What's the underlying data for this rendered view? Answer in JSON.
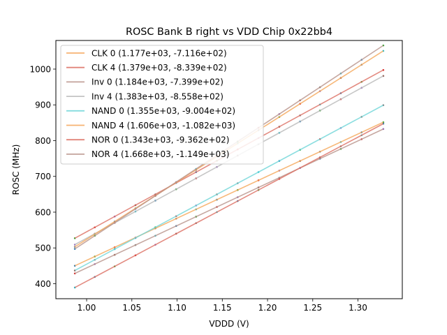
{
  "chart_data": {
    "type": "line",
    "title": "ROSC Bank B right vs VDD Chip 0x22bb4",
    "xlabel": "VDDD (V)",
    "ylabel": "ROSC (MHz)",
    "xlim": [
      0.966,
      1.349
    ],
    "ylim": [
      358,
      1080
    ],
    "xticks": [
      "1.00",
      "1.05",
      "1.10",
      "1.15",
      "1.20",
      "1.25",
      "1.30"
    ],
    "yticks": [
      "400",
      "500",
      "600",
      "700",
      "800",
      "900",
      "1000"
    ],
    "grid": false,
    "legend_position": "top-left",
    "x_points": [
      0.987,
      1.009,
      1.031,
      1.054,
      1.076,
      1.099,
      1.121,
      1.144,
      1.167,
      1.19,
      1.213,
      1.236,
      1.258,
      1.281,
      1.304,
      1.328
    ],
    "series": [
      {
        "name": "CLK 0 (1.177e+03, -7.116e+02)",
        "slope": 1177,
        "intercept": -711.6,
        "color": "#f5a658"
      },
      {
        "name": "CLK 4 (1.379e+03, -8.339e+02)",
        "slope": 1379,
        "intercept": -833.9,
        "color": "#dc6e62"
      },
      {
        "name": "Inv 0 (1.184e+03, -7.399e+02)",
        "slope": 1184,
        "intercept": -739.9,
        "color": "#b8928a"
      },
      {
        "name": "Inv 4 (1.383e+03, -8.558e+02)",
        "slope": 1383,
        "intercept": -855.8,
        "color": "#b8b8b8"
      },
      {
        "name": "NAND 0 (1.355e+03, -9.004e+02)",
        "slope": 1355,
        "intercept": -900.4,
        "color": "#6fd6d8"
      },
      {
        "name": "NAND 4 (1.606e+03, -1.082e+03)",
        "slope": 1606,
        "intercept": -1082,
        "color": "#f5a658"
      },
      {
        "name": "NOR 0 (1.343e+03, -9.362e+02)",
        "slope": 1343,
        "intercept": -936.2,
        "color": "#dc6e62"
      },
      {
        "name": "NOR 4 (1.668e+03, -1.149e+03)",
        "slope": 1668,
        "intercept": -1149,
        "color": "#b8928a"
      }
    ],
    "point_colors": [
      "#1f77b4",
      "#2ca02c",
      "#d62728",
      "#9467bd",
      "#8c564b",
      "#7f7f7f",
      "#17becf"
    ]
  }
}
